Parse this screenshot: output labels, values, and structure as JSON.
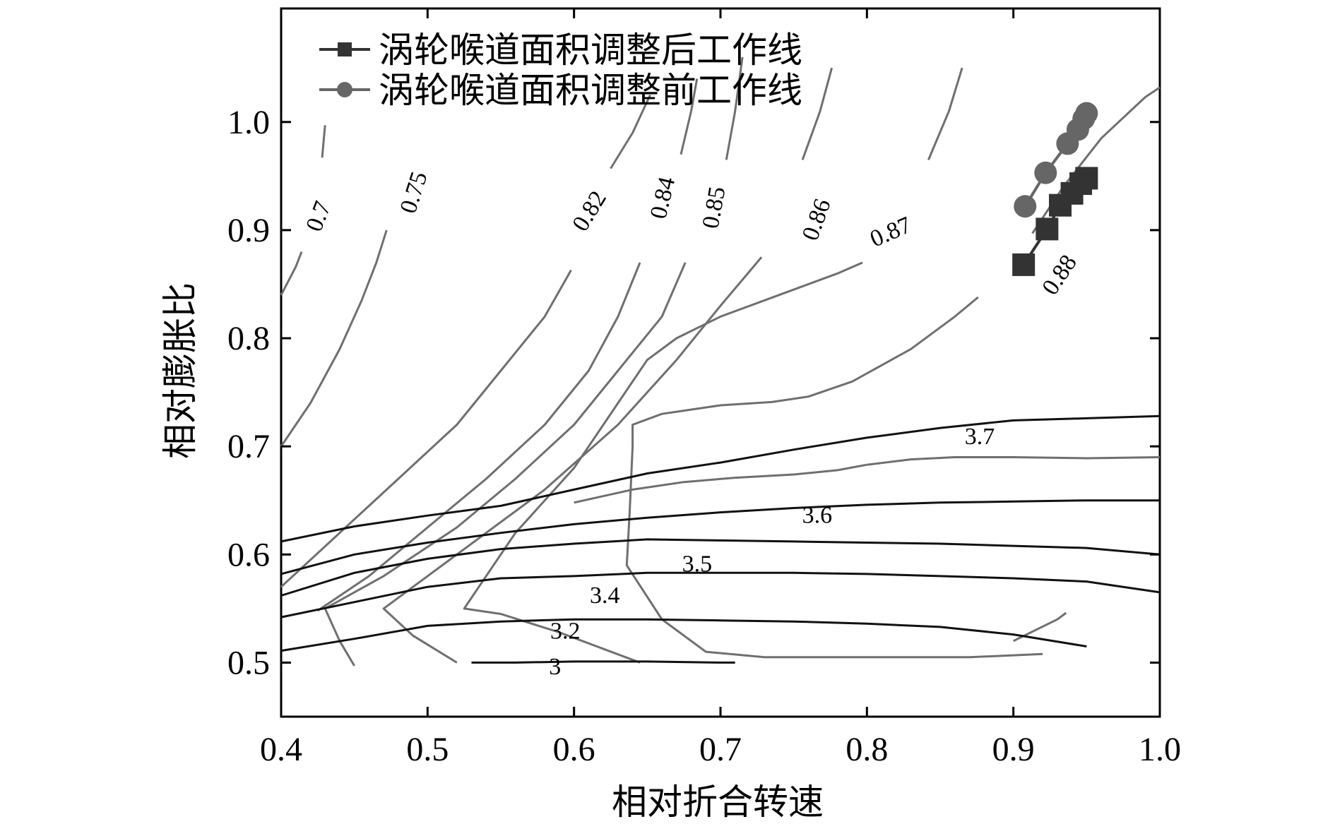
{
  "chart_data": {
    "type": "line",
    "xlabel": "相对折合转速",
    "ylabel": "相对膨胀比",
    "xlim": [
      0.4,
      1.0
    ],
    "ylim": [
      0.45,
      1.105
    ],
    "x_ticks": [
      "0.4",
      "0.5",
      "0.6",
      "0.7",
      "0.8",
      "0.9",
      "1.0"
    ],
    "y_ticks": [
      "0.5",
      "0.6",
      "0.7",
      "0.8",
      "0.9",
      "1.0"
    ],
    "colors": {
      "after": "#333333",
      "before": "#666666",
      "efficiency": "#6f6f6f",
      "pressure_ratio": "#111111"
    },
    "series": [
      {
        "name": "涡轮喉道面积调整后工作线",
        "marker": "square",
        "x": [
          0.907,
          0.923,
          0.932,
          0.94,
          0.946,
          0.95
        ],
        "y": [
          0.868,
          0.901,
          0.923,
          0.934,
          0.943,
          0.948
        ]
      },
      {
        "name": "涡轮喉道面积调整前工作线",
        "marker": "circle",
        "x": [
          0.908,
          0.922,
          0.937,
          0.944,
          0.948,
          0.95
        ],
        "y": [
          0.922,
          0.953,
          0.98,
          0.993,
          1.003,
          1.008
        ]
      }
    ],
    "efficiency_contours": [
      {
        "label": "0.7",
        "label_at": [
          0.425,
          0.913
        ],
        "segments": [
          [
            [
              0.4,
              0.84
            ],
            [
              0.41,
              0.866
            ],
            [
              0.414,
              0.88
            ]
          ],
          [
            [
              0.428,
              0.967
            ],
            [
              0.429,
              0.982
            ],
            [
              0.43,
              0.997
            ]
          ]
        ]
      },
      {
        "label": "0.75",
        "label_at": [
          0.49,
          0.935
        ],
        "segments": [
          [
            [
              0.4,
              0.7
            ],
            [
              0.42,
              0.74
            ],
            [
              0.44,
              0.79
            ],
            [
              0.455,
              0.835
            ],
            [
              0.465,
              0.87
            ],
            [
              0.472,
              0.9
            ]
          ]
        ]
      },
      {
        "label": "0.82",
        "label_at": [
          0.61,
          0.918
        ],
        "segments": [
          [
            [
              0.4,
              0.57
            ],
            [
              0.44,
              0.62
            ],
            [
              0.48,
              0.67
            ],
            [
              0.52,
              0.72
            ],
            [
              0.55,
              0.77
            ],
            [
              0.58,
              0.82
            ],
            [
              0.598,
              0.863
            ]
          ],
          [
            [
              0.625,
              0.957
            ],
            [
              0.64,
              0.99
            ],
            [
              0.652,
              1.025
            ]
          ]
        ]
      },
      {
        "label": "0.84",
        "label_at": [
          0.66,
          0.93
        ],
        "segments": [
          [
            [
              0.425,
              0.548
            ],
            [
              0.46,
              0.58
            ],
            [
              0.5,
              0.625
            ],
            [
              0.54,
              0.67
            ],
            [
              0.58,
              0.72
            ],
            [
              0.61,
              0.77
            ],
            [
              0.63,
              0.82
            ],
            [
              0.645,
              0.87
            ]
          ],
          [
            [
              0.673,
              0.97
            ],
            [
              0.68,
              1.01
            ],
            [
              0.684,
              1.04
            ]
          ]
        ]
      },
      {
        "label": "0.85",
        "label_at": [
          0.695,
          0.921
        ],
        "segments": [
          [
            [
              0.45,
              0.497
            ],
            [
              0.44,
              0.52
            ],
            [
              0.43,
              0.55
            ],
            [
              0.47,
              0.58
            ],
            [
              0.52,
              0.625
            ],
            [
              0.56,
              0.67
            ],
            [
              0.6,
              0.72
            ],
            [
              0.63,
              0.77
            ],
            [
              0.66,
              0.82
            ],
            [
              0.676,
              0.87
            ]
          ],
          [
            [
              0.704,
              0.965
            ],
            [
              0.71,
              1.01
            ],
            [
              0.715,
              1.06
            ]
          ]
        ]
      },
      {
        "label": "0.86",
        "label_at": [
          0.765,
          0.91
        ],
        "segments": [
          [
            [
              0.52,
              0.5
            ],
            [
              0.49,
              0.525
            ],
            [
              0.47,
              0.55
            ],
            [
              0.52,
              0.6
            ],
            [
              0.58,
              0.66
            ],
            [
              0.63,
              0.72
            ],
            [
              0.67,
              0.78
            ],
            [
              0.7,
              0.83
            ],
            [
              0.728,
              0.875
            ]
          ],
          [
            [
              0.756,
              0.965
            ],
            [
              0.768,
              1.01
            ],
            [
              0.776,
              1.05
            ]
          ]
        ]
      },
      {
        "label": "0.87",
        "label_at": [
          0.816,
          0.899
        ],
        "segments": [
          [
            [
              0.645,
              0.5
            ],
            [
              0.59,
              0.528
            ],
            [
              0.55,
              0.545
            ],
            [
              0.525,
              0.55
            ],
            [
              0.535,
              0.57
            ],
            [
              0.56,
              0.62
            ],
            [
              0.6,
              0.68
            ],
            [
              0.63,
              0.74
            ],
            [
              0.65,
              0.78
            ],
            [
              0.67,
              0.8
            ],
            [
              0.7,
              0.82
            ],
            [
              0.74,
              0.84
            ],
            [
              0.78,
              0.86
            ],
            [
              0.797,
              0.87
            ]
          ],
          [
            [
              0.842,
              0.965
            ],
            [
              0.856,
              1.01
            ],
            [
              0.865,
              1.05
            ]
          ]
        ]
      },
      {
        "label": "0.88",
        "label_at": [
          0.931,
          0.859
        ],
        "segments": [
          [
            [
              0.9,
              0.52
            ],
            [
              0.93,
              0.54
            ],
            [
              0.936,
              0.546
            ]
          ],
          [
            [
              0.92,
              0.508
            ],
            [
              0.87,
              0.505
            ],
            [
              0.78,
              0.505
            ],
            [
              0.73,
              0.505
            ],
            [
              0.69,
              0.51
            ],
            [
              0.66,
              0.54
            ],
            [
              0.636,
              0.59
            ],
            [
              0.638,
              0.64
            ],
            [
              0.64,
              0.7
            ],
            [
              0.64,
              0.72
            ],
            [
              0.66,
              0.73
            ],
            [
              0.7,
              0.738
            ],
            [
              0.735,
              0.741
            ],
            [
              0.76,
              0.746
            ],
            [
              0.79,
              0.76
            ],
            [
              0.83,
              0.79
            ],
            [
              0.86,
              0.82
            ],
            [
              0.876,
              0.838
            ]
          ],
          [
            [
              0.913,
              0.897
            ],
            [
              0.934,
              0.94
            ],
            [
              0.96,
              0.985
            ],
            [
              0.99,
              1.023
            ],
            [
              1.0,
              1.032
            ]
          ]
        ]
      },
      {
        "label": "",
        "label_at": null,
        "segments": [
          [
            [
              0.6,
              0.648
            ],
            [
              0.64,
              0.66
            ],
            [
              0.675,
              0.667
            ],
            [
              0.71,
              0.671
            ],
            [
              0.75,
              0.674
            ],
            [
              0.78,
              0.678
            ],
            [
              0.8,
              0.683
            ]
          ],
          [
            [
              0.8,
              0.683
            ],
            [
              0.83,
              0.688
            ],
            [
              0.86,
              0.69
            ],
            [
              0.9,
              0.69
            ],
            [
              0.95,
              0.689
            ],
            [
              1.0,
              0.69
            ]
          ]
        ]
      }
    ],
    "pressure_ratio_contours": [
      {
        "label": "3.7",
        "label_at": [
          0.877,
          0.71
        ],
        "points": [
          [
            0.4,
            0.612
          ],
          [
            0.45,
            0.626
          ],
          [
            0.5,
            0.636
          ],
          [
            0.55,
            0.645
          ],
          [
            0.6,
            0.66
          ],
          [
            0.65,
            0.675
          ],
          [
            0.7,
            0.685
          ],
          [
            0.75,
            0.697
          ],
          [
            0.8,
            0.708
          ],
          [
            0.85,
            0.717
          ],
          [
            0.9,
            0.724
          ],
          [
            0.95,
            0.726
          ],
          [
            1.0,
            0.728
          ]
        ]
      },
      {
        "label": "3.6",
        "label_at": [
          0.766,
          0.637
        ],
        "points": [
          [
            0.4,
            0.582
          ],
          [
            0.45,
            0.6
          ],
          [
            0.5,
            0.611
          ],
          [
            0.55,
            0.62
          ],
          [
            0.6,
            0.628
          ],
          [
            0.65,
            0.634
          ],
          [
            0.7,
            0.639
          ],
          [
            0.75,
            0.643
          ],
          [
            0.8,
            0.646
          ],
          [
            0.85,
            0.648
          ],
          [
            0.9,
            0.649
          ],
          [
            0.95,
            0.65
          ],
          [
            1.0,
            0.65
          ]
        ]
      },
      {
        "label": "3.5",
        "label_at": [
          0.684,
          0.592
        ],
        "points": [
          [
            0.4,
            0.562
          ],
          [
            0.45,
            0.583
          ],
          [
            0.5,
            0.596
          ],
          [
            0.55,
            0.605
          ],
          [
            0.6,
            0.61
          ],
          [
            0.65,
            0.614
          ],
          [
            0.7,
            0.613
          ],
          [
            0.75,
            0.612
          ],
          [
            0.8,
            0.611
          ],
          [
            0.85,
            0.61
          ],
          [
            0.9,
            0.608
          ],
          [
            0.95,
            0.606
          ],
          [
            1.0,
            0.6
          ]
        ]
      },
      {
        "label": "3.4",
        "label_at": [
          0.621,
          0.563
        ],
        "points": [
          [
            0.4,
            0.542
          ],
          [
            0.45,
            0.556
          ],
          [
            0.5,
            0.57
          ],
          [
            0.55,
            0.578
          ],
          [
            0.6,
            0.58
          ],
          [
            0.65,
            0.583
          ],
          [
            0.7,
            0.583
          ],
          [
            0.75,
            0.583
          ],
          [
            0.8,
            0.582
          ],
          [
            0.85,
            0.58
          ],
          [
            0.9,
            0.578
          ],
          [
            0.95,
            0.575
          ],
          [
            1.0,
            0.565
          ]
        ]
      },
      {
        "label": "3.2",
        "label_at": [
          0.594,
          0.53
        ],
        "points": [
          [
            0.4,
            0.511
          ],
          [
            0.45,
            0.522
          ],
          [
            0.5,
            0.534
          ],
          [
            0.55,
            0.538
          ],
          [
            0.6,
            0.54
          ],
          [
            0.65,
            0.54
          ],
          [
            0.7,
            0.539
          ],
          [
            0.75,
            0.538
          ],
          [
            0.8,
            0.536
          ],
          [
            0.85,
            0.533
          ],
          [
            0.9,
            0.526
          ],
          [
            0.95,
            0.515
          ]
        ]
      },
      {
        "label": "3",
        "label_at": [
          0.587,
          0.497
        ],
        "points": [
          [
            0.53,
            0.5
          ],
          [
            0.56,
            0.5
          ],
          [
            0.6,
            0.501
          ],
          [
            0.65,
            0.501
          ],
          [
            0.7,
            0.5
          ],
          [
            0.71,
            0.5
          ]
        ]
      }
    ]
  }
}
